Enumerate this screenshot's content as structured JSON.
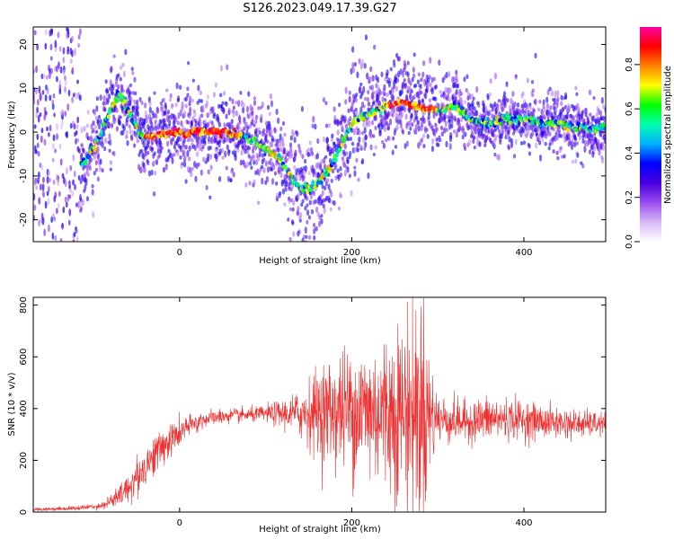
{
  "title": "S126.2023.049.17.39.G27",
  "chart_data": [
    {
      "type": "heatmap",
      "xlabel": "Height of straight line (km)",
      "ylabel": "Frequency (Hz)",
      "xlim": [
        -170,
        495
      ],
      "ylim": [
        -25,
        24
      ],
      "x_ticks": [
        0,
        200,
        400
      ],
      "y_ticks": [
        -20,
        -10,
        0,
        10,
        20
      ],
      "colorbar": {
        "label": "Normalized spectral amplitude",
        "range": [
          0,
          0.97
        ],
        "ticks": [
          0.0,
          0.2,
          0.4,
          0.6,
          0.8
        ],
        "colormap": [
          "#ffffff",
          "#d8b8f8",
          "#9a4cf0",
          "#4a00e0",
          "#0000ff",
          "#00b0ff",
          "#00ffb0",
          "#00ff00",
          "#ffff00",
          "#ff8000",
          "#ff0000",
          "#ff00a0"
        ]
      },
      "ridge": [
        [
          -135,
          -7
        ],
        [
          -110,
          -7
        ],
        [
          -95,
          -2
        ],
        [
          -80,
          5
        ],
        [
          -70,
          9
        ],
        [
          -60,
          5
        ],
        [
          -45,
          -1
        ],
        [
          -35,
          -1
        ],
        [
          0,
          0
        ],
        [
          50,
          0
        ],
        [
          75,
          -1
        ],
        [
          95,
          -3
        ],
        [
          115,
          -6
        ],
        [
          130,
          -10
        ],
        [
          140,
          -13
        ],
        [
          160,
          -12
        ],
        [
          175,
          -8
        ],
        [
          190,
          -2
        ],
        [
          200,
          2
        ],
        [
          210,
          3
        ],
        [
          230,
          5
        ],
        [
          255,
          7
        ],
        [
          275,
          6
        ],
        [
          300,
          5
        ],
        [
          320,
          6
        ],
        [
          335,
          3
        ],
        [
          360,
          2
        ],
        [
          380,
          3
        ],
        [
          400,
          3
        ],
        [
          420,
          2
        ],
        [
          440,
          2
        ],
        [
          460,
          1
        ],
        [
          480,
          1
        ],
        [
          495,
          1
        ]
      ]
    },
    {
      "type": "line",
      "xlabel": "Height of straight line (km)",
      "ylabel": "SNR (10 * v/v)",
      "xlim": [
        -170,
        495
      ],
      "ylim": [
        0,
        830
      ],
      "x_ticks": [
        0,
        200,
        400
      ],
      "y_ticks": [
        0,
        200,
        400,
        600,
        800
      ],
      "color": "#ee3030",
      "envelope": {
        "x": [
          -170,
          -120,
          -90,
          -70,
          -50,
          -30,
          -10,
          10,
          30,
          50,
          80,
          100,
          130,
          150,
          170,
          190,
          210,
          230,
          250,
          270,
          285,
          290,
          300,
          330,
          360,
          390,
          420,
          460,
          495
        ],
        "mean": [
          10,
          15,
          25,
          60,
          130,
          220,
          280,
          330,
          360,
          370,
          375,
          380,
          380,
          385,
          390,
          395,
          395,
          390,
          390,
          400,
          400,
          380,
          360,
          350,
          360,
          360,
          350,
          340,
          340
        ],
        "amplitude": [
          6,
          8,
          12,
          40,
          70,
          70,
          60,
          40,
          30,
          25,
          25,
          30,
          60,
          120,
          180,
          210,
          250,
          260,
          300,
          370,
          420,
          220,
          90,
          70,
          80,
          70,
          60,
          50,
          40
        ]
      }
    }
  ]
}
